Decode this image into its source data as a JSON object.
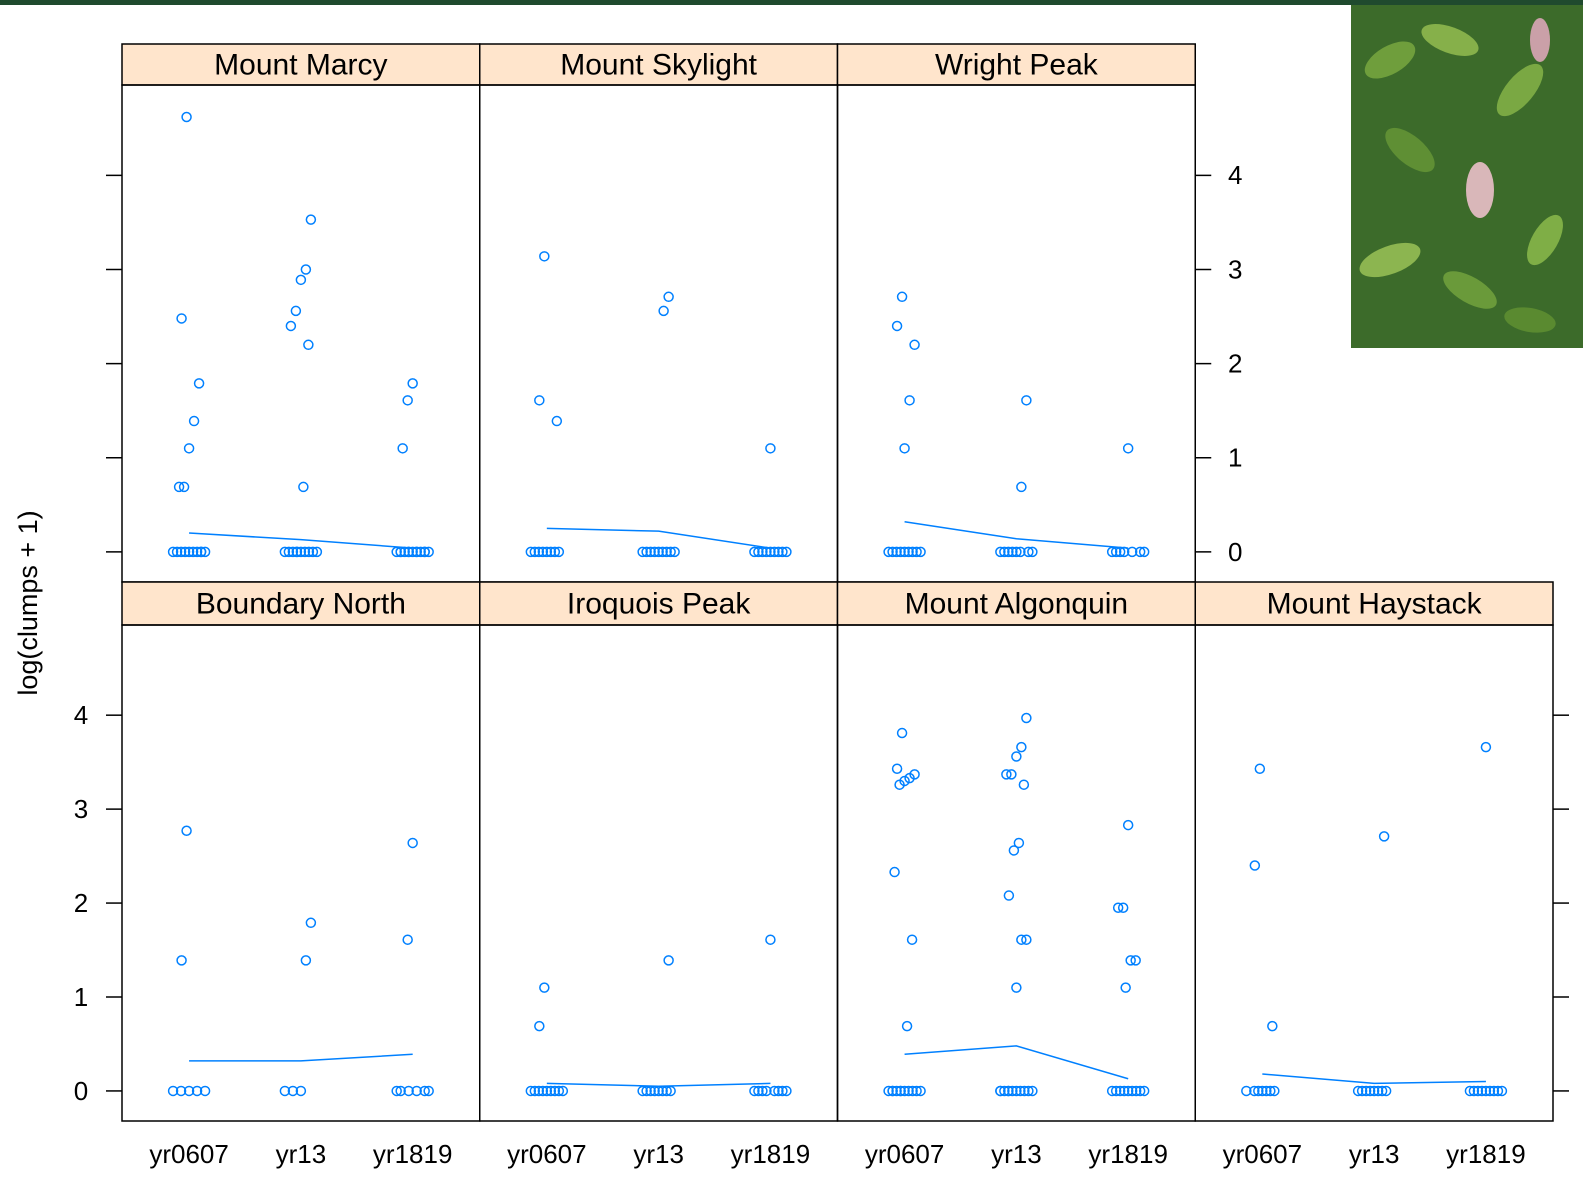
{
  "chart_data": {
    "type": "lattice",
    "ylabel": "log(clumps + 1)",
    "ylim": [
      -0.32,
      4.96
    ],
    "yticks": [
      0,
      1,
      2,
      3,
      4
    ],
    "categories": [
      "yr0607",
      "yr13",
      "yr1819"
    ],
    "point_color": "#0080ff",
    "line_color": "#0080ff",
    "strip_color": "#ffe5cc",
    "panels": [
      {
        "type": "scatter",
        "title": "Mount Marcy",
        "points": [
          [
            4.62,
            2.48,
            1.79,
            1.39,
            1.1,
            0.69,
            0.69,
            0,
            0,
            0,
            0,
            0,
            0,
            0,
            0,
            0,
            0
          ],
          [
            3.53,
            3.0,
            2.89,
            2.56,
            2.4,
            2.2,
            0.69,
            0,
            0,
            0,
            0,
            0,
            0,
            0,
            0,
            0,
            0
          ],
          [
            1.79,
            1.61,
            1.1,
            0,
            0,
            0,
            0,
            0,
            0,
            0,
            0,
            0,
            0,
            0,
            0,
            0
          ]
        ],
        "line": [
          0.2,
          0.13,
          0.04
        ]
      },
      {
        "type": "scatter",
        "title": "Mount Skylight",
        "points": [
          [
            3.14,
            1.61,
            1.39,
            0,
            0,
            0,
            0,
            0,
            0,
            0,
            0
          ],
          [
            2.71,
            2.56,
            0,
            0,
            0,
            0,
            0,
            0,
            0,
            0,
            0
          ],
          [
            1.1,
            0,
            0,
            0,
            0,
            0,
            0,
            0,
            0,
            0
          ]
        ],
        "line": [
          0.25,
          0.22,
          0.04
        ]
      },
      {
        "type": "scatter",
        "title": "Wright Peak",
        "points": [
          [
            2.71,
            2.4,
            2.2,
            1.61,
            1.1,
            0,
            0,
            0,
            0,
            0,
            0,
            0,
            0,
            0
          ],
          [
            1.61,
            0.69,
            0,
            0,
            0,
            0,
            0,
            0,
            0,
            0
          ],
          [
            1.1,
            0,
            0,
            0,
            0,
            0,
            0,
            0
          ]
        ],
        "line": [
          0.32,
          0.14,
          0.04
        ]
      },
      {
        "type": "scatter",
        "title": "Boundary North",
        "points": [
          [
            2.77,
            1.39,
            0,
            0,
            0,
            0,
            0
          ],
          [
            1.79,
            1.39,
            0,
            0,
            0
          ],
          [
            2.64,
            1.61,
            0,
            0,
            0,
            0,
            0,
            0
          ]
        ],
        "line": [
          0.32,
          0.32,
          0.39
        ]
      },
      {
        "type": "scatter",
        "title": "Iroquois Peak",
        "points": [
          [
            1.1,
            0.69,
            0,
            0,
            0,
            0,
            0,
            0,
            0,
            0,
            0
          ],
          [
            1.39,
            0,
            0,
            0,
            0,
            0,
            0,
            0,
            0
          ],
          [
            1.61,
            0,
            0,
            0,
            0,
            0,
            0,
            0,
            0
          ]
        ],
        "line": [
          0.08,
          0.05,
          0.08
        ]
      },
      {
        "type": "scatter",
        "title": "Mount Algonquin",
        "points": [
          [
            3.81,
            3.43,
            3.37,
            3.33,
            3.3,
            3.26,
            2.33,
            1.61,
            0.69,
            0,
            0,
            0,
            0,
            0,
            0,
            0,
            0,
            0,
            0,
            0
          ],
          [
            3.97,
            3.66,
            3.56,
            3.37,
            3.37,
            3.26,
            2.64,
            2.56,
            2.08,
            1.61,
            1.61,
            1.1,
            0,
            0,
            0,
            0,
            0,
            0,
            0,
            0,
            0,
            0,
            0
          ],
          [
            2.83,
            1.95,
            1.95,
            1.39,
            1.39,
            1.1,
            0,
            0,
            0,
            0,
            0,
            0,
            0,
            0,
            0
          ]
        ],
        "line": [
          0.39,
          0.48,
          0.13
        ]
      },
      {
        "type": "scatter",
        "title": "Mount Haystack",
        "points": [
          [
            3.43,
            2.4,
            0.69,
            0,
            0,
            0,
            0,
            0,
            0,
            0
          ],
          [
            2.71,
            0,
            0,
            0,
            0,
            0,
            0,
            0,
            0
          ],
          [
            3.66,
            0,
            0,
            0,
            0,
            0,
            0,
            0,
            0,
            0
          ]
        ],
        "line": [
          0.18,
          0.08,
          0.1
        ]
      }
    ]
  }
}
